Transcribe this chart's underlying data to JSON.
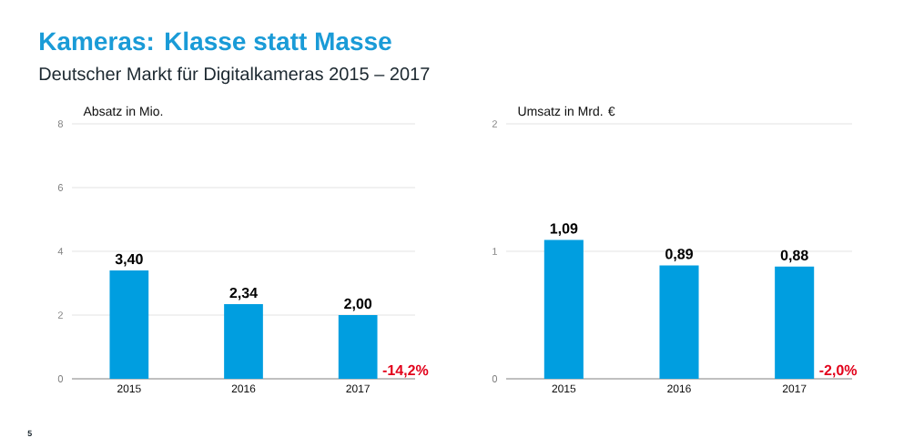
{
  "chart_data": [
    {
      "type": "bar",
      "title": "Kameras: Klasse statt Masse",
      "subtitle": "Deutscher Markt für Digitalkameras 2015 – 2017",
      "ylabel": "Absatz in Mio.",
      "categories": [
        "2015",
        "2016",
        "2017"
      ],
      "values": [
        3.4,
        2.34,
        2.0
      ],
      "value_labels": [
        "3,40",
        "2,34",
        "2,00"
      ],
      "color": "#009ee0",
      "ylim": [
        0,
        8
      ],
      "yticks": [
        0,
        2,
        4,
        6,
        8
      ],
      "grid": "y",
      "annotations": [
        {
          "text": "-14,2%",
          "x": "2017",
          "y": 0
        },
        "5"
      ]
    },
    {
      "type": "bar",
      "ylabel": "Umsatz in Mrd. €",
      "categories": [
        "2015",
        "2016",
        "2017"
      ],
      "values": [
        1.09,
        0.89,
        0.88
      ],
      "value_labels": [
        "1,09",
        "0,89",
        "0,88"
      ],
      "color": "#009ee0",
      "ylim": [
        0,
        2
      ],
      "yticks": [
        0,
        1,
        2
      ],
      "grid": "y",
      "annotations": [
        {
          "text": "-2,0%",
          "x": "2017",
          "y": 0
        }
      ]
    }
  ]
}
